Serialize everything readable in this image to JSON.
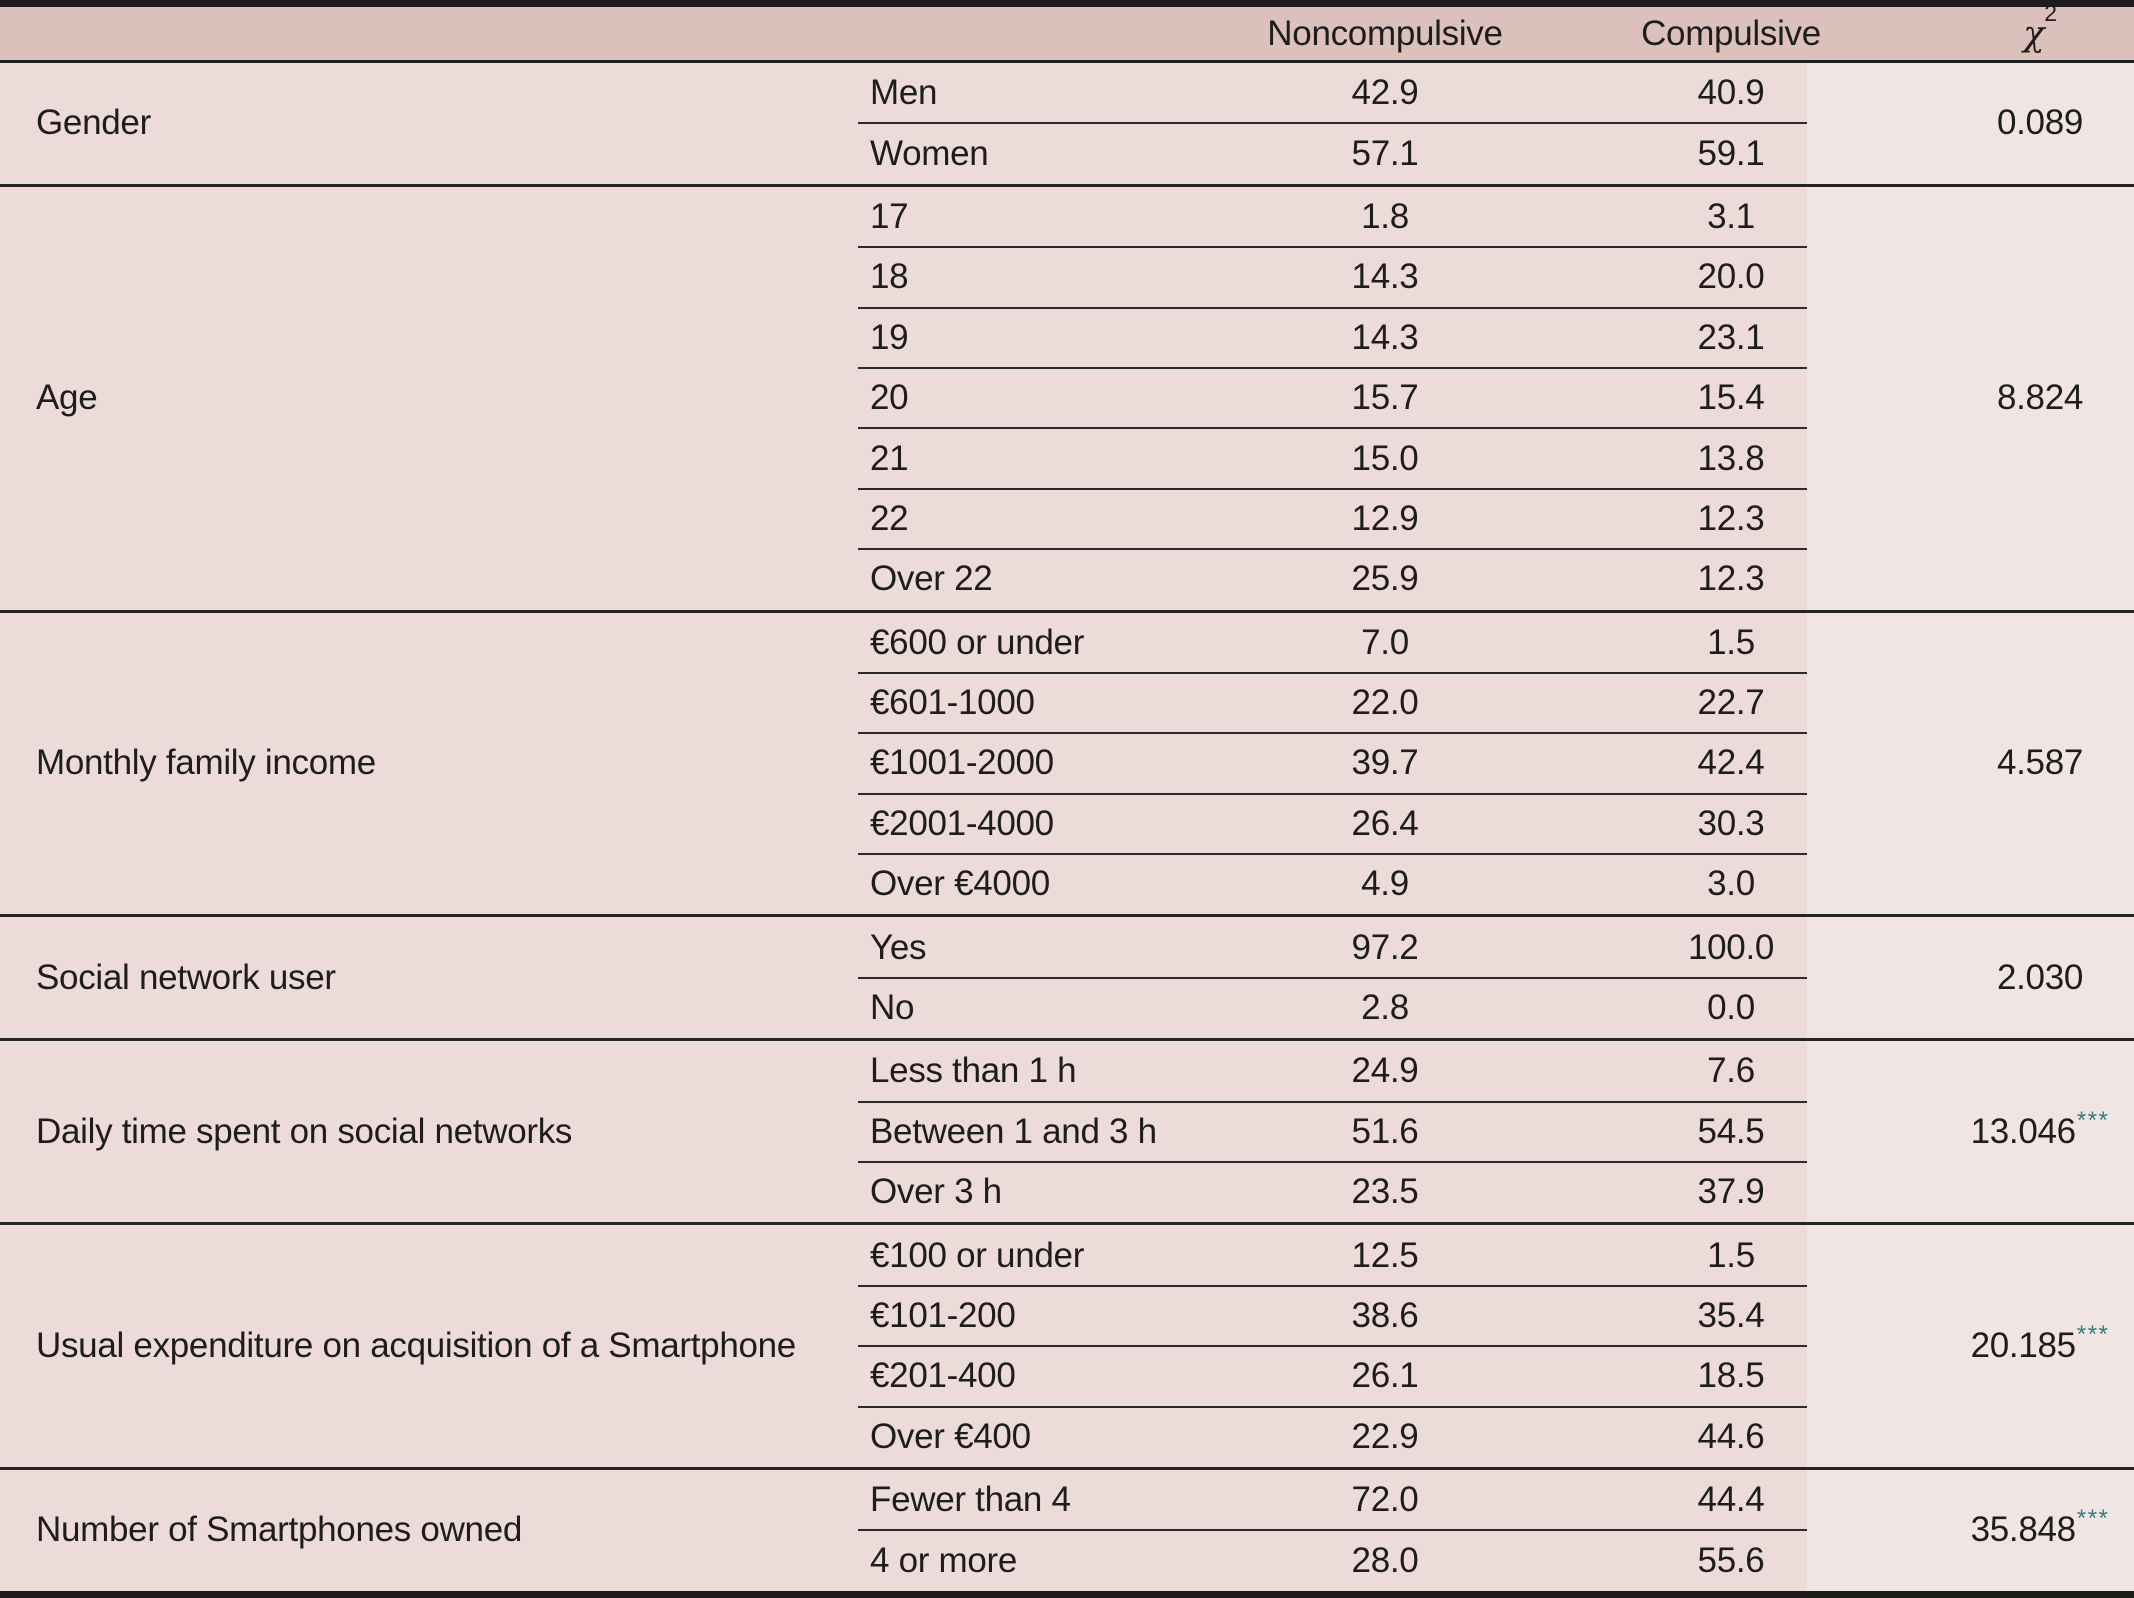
{
  "table": {
    "header": {
      "noncompulsive_label": "Noncompulsive",
      "compulsive_label": "Compulsive",
      "chi_symbol": "χ",
      "chi_exponent": "2"
    },
    "colors": {
      "header_bg": "#dbc0bb",
      "body_bg": "#ecdbd8",
      "rule_color": "#242424",
      "star_color": "#2e7f7f",
      "text_color": "#1d1d1d"
    },
    "sections": [
      {
        "category": "Gender",
        "chi": "0.089",
        "stars": "",
        "rows": [
          {
            "label": "Men",
            "noncompulsive": "42.9",
            "compulsive": "40.9"
          },
          {
            "label": "Women",
            "noncompulsive": "57.1",
            "compulsive": "59.1"
          }
        ]
      },
      {
        "category": "Age",
        "chi": "8.824",
        "stars": "",
        "rows": [
          {
            "label": "17",
            "noncompulsive": "1.8",
            "compulsive": "3.1"
          },
          {
            "label": "18",
            "noncompulsive": "14.3",
            "compulsive": "20.0"
          },
          {
            "label": "19",
            "noncompulsive": "14.3",
            "compulsive": "23.1"
          },
          {
            "label": "20",
            "noncompulsive": "15.7",
            "compulsive": "15.4"
          },
          {
            "label": "21",
            "noncompulsive": "15.0",
            "compulsive": "13.8"
          },
          {
            "label": "22",
            "noncompulsive": "12.9",
            "compulsive": "12.3"
          },
          {
            "label": "Over 22",
            "noncompulsive": "25.9",
            "compulsive": "12.3"
          }
        ]
      },
      {
        "category": "Monthly family income",
        "chi": "4.587",
        "stars": "",
        "rows": [
          {
            "label": "€600 or under",
            "noncompulsive": "7.0",
            "compulsive": "1.5"
          },
          {
            "label": "€601-1000",
            "noncompulsive": "22.0",
            "compulsive": "22.7"
          },
          {
            "label": "€1001-2000",
            "noncompulsive": "39.7",
            "compulsive": "42.4"
          },
          {
            "label": "€2001-4000",
            "noncompulsive": "26.4",
            "compulsive": "30.3"
          },
          {
            "label": "Over €4000",
            "noncompulsive": "4.9",
            "compulsive": "3.0"
          }
        ]
      },
      {
        "category": "Social network user",
        "chi": "2.030",
        "stars": "",
        "rows": [
          {
            "label": "Yes",
            "noncompulsive": "97.2",
            "compulsive": "100.0"
          },
          {
            "label": "No",
            "noncompulsive": "2.8",
            "compulsive": "0.0"
          }
        ]
      },
      {
        "category": "Daily time spent on social networks",
        "chi": "13.046",
        "stars": "***",
        "rows": [
          {
            "label": "Less than 1 h",
            "noncompulsive": "24.9",
            "compulsive": "7.6"
          },
          {
            "label": "Between 1 and 3 h",
            "noncompulsive": "51.6",
            "compulsive": "54.5"
          },
          {
            "label": "Over 3 h",
            "noncompulsive": "23.5",
            "compulsive": "37.9"
          }
        ]
      },
      {
        "category": "Usual expenditure on acquisition of a Smartphone",
        "chi": "20.185",
        "stars": "***",
        "rows": [
          {
            "label": "€100 or under",
            "noncompulsive": "12.5",
            "compulsive": "1.5"
          },
          {
            "label": "€101-200",
            "noncompulsive": "38.6",
            "compulsive": "35.4"
          },
          {
            "label": "€201-400",
            "noncompulsive": "26.1",
            "compulsive": "18.5"
          },
          {
            "label": "Over €400",
            "noncompulsive": "22.9",
            "compulsive": "44.6"
          }
        ]
      },
      {
        "category": "Number of Smartphones owned",
        "chi": "35.848",
        "stars": "***",
        "rows": [
          {
            "label": "Fewer than 4",
            "noncompulsive": "72.0",
            "compulsive": "44.4"
          },
          {
            "label": "4 or more",
            "noncompulsive": "28.0",
            "compulsive": "55.6"
          }
        ]
      }
    ]
  }
}
